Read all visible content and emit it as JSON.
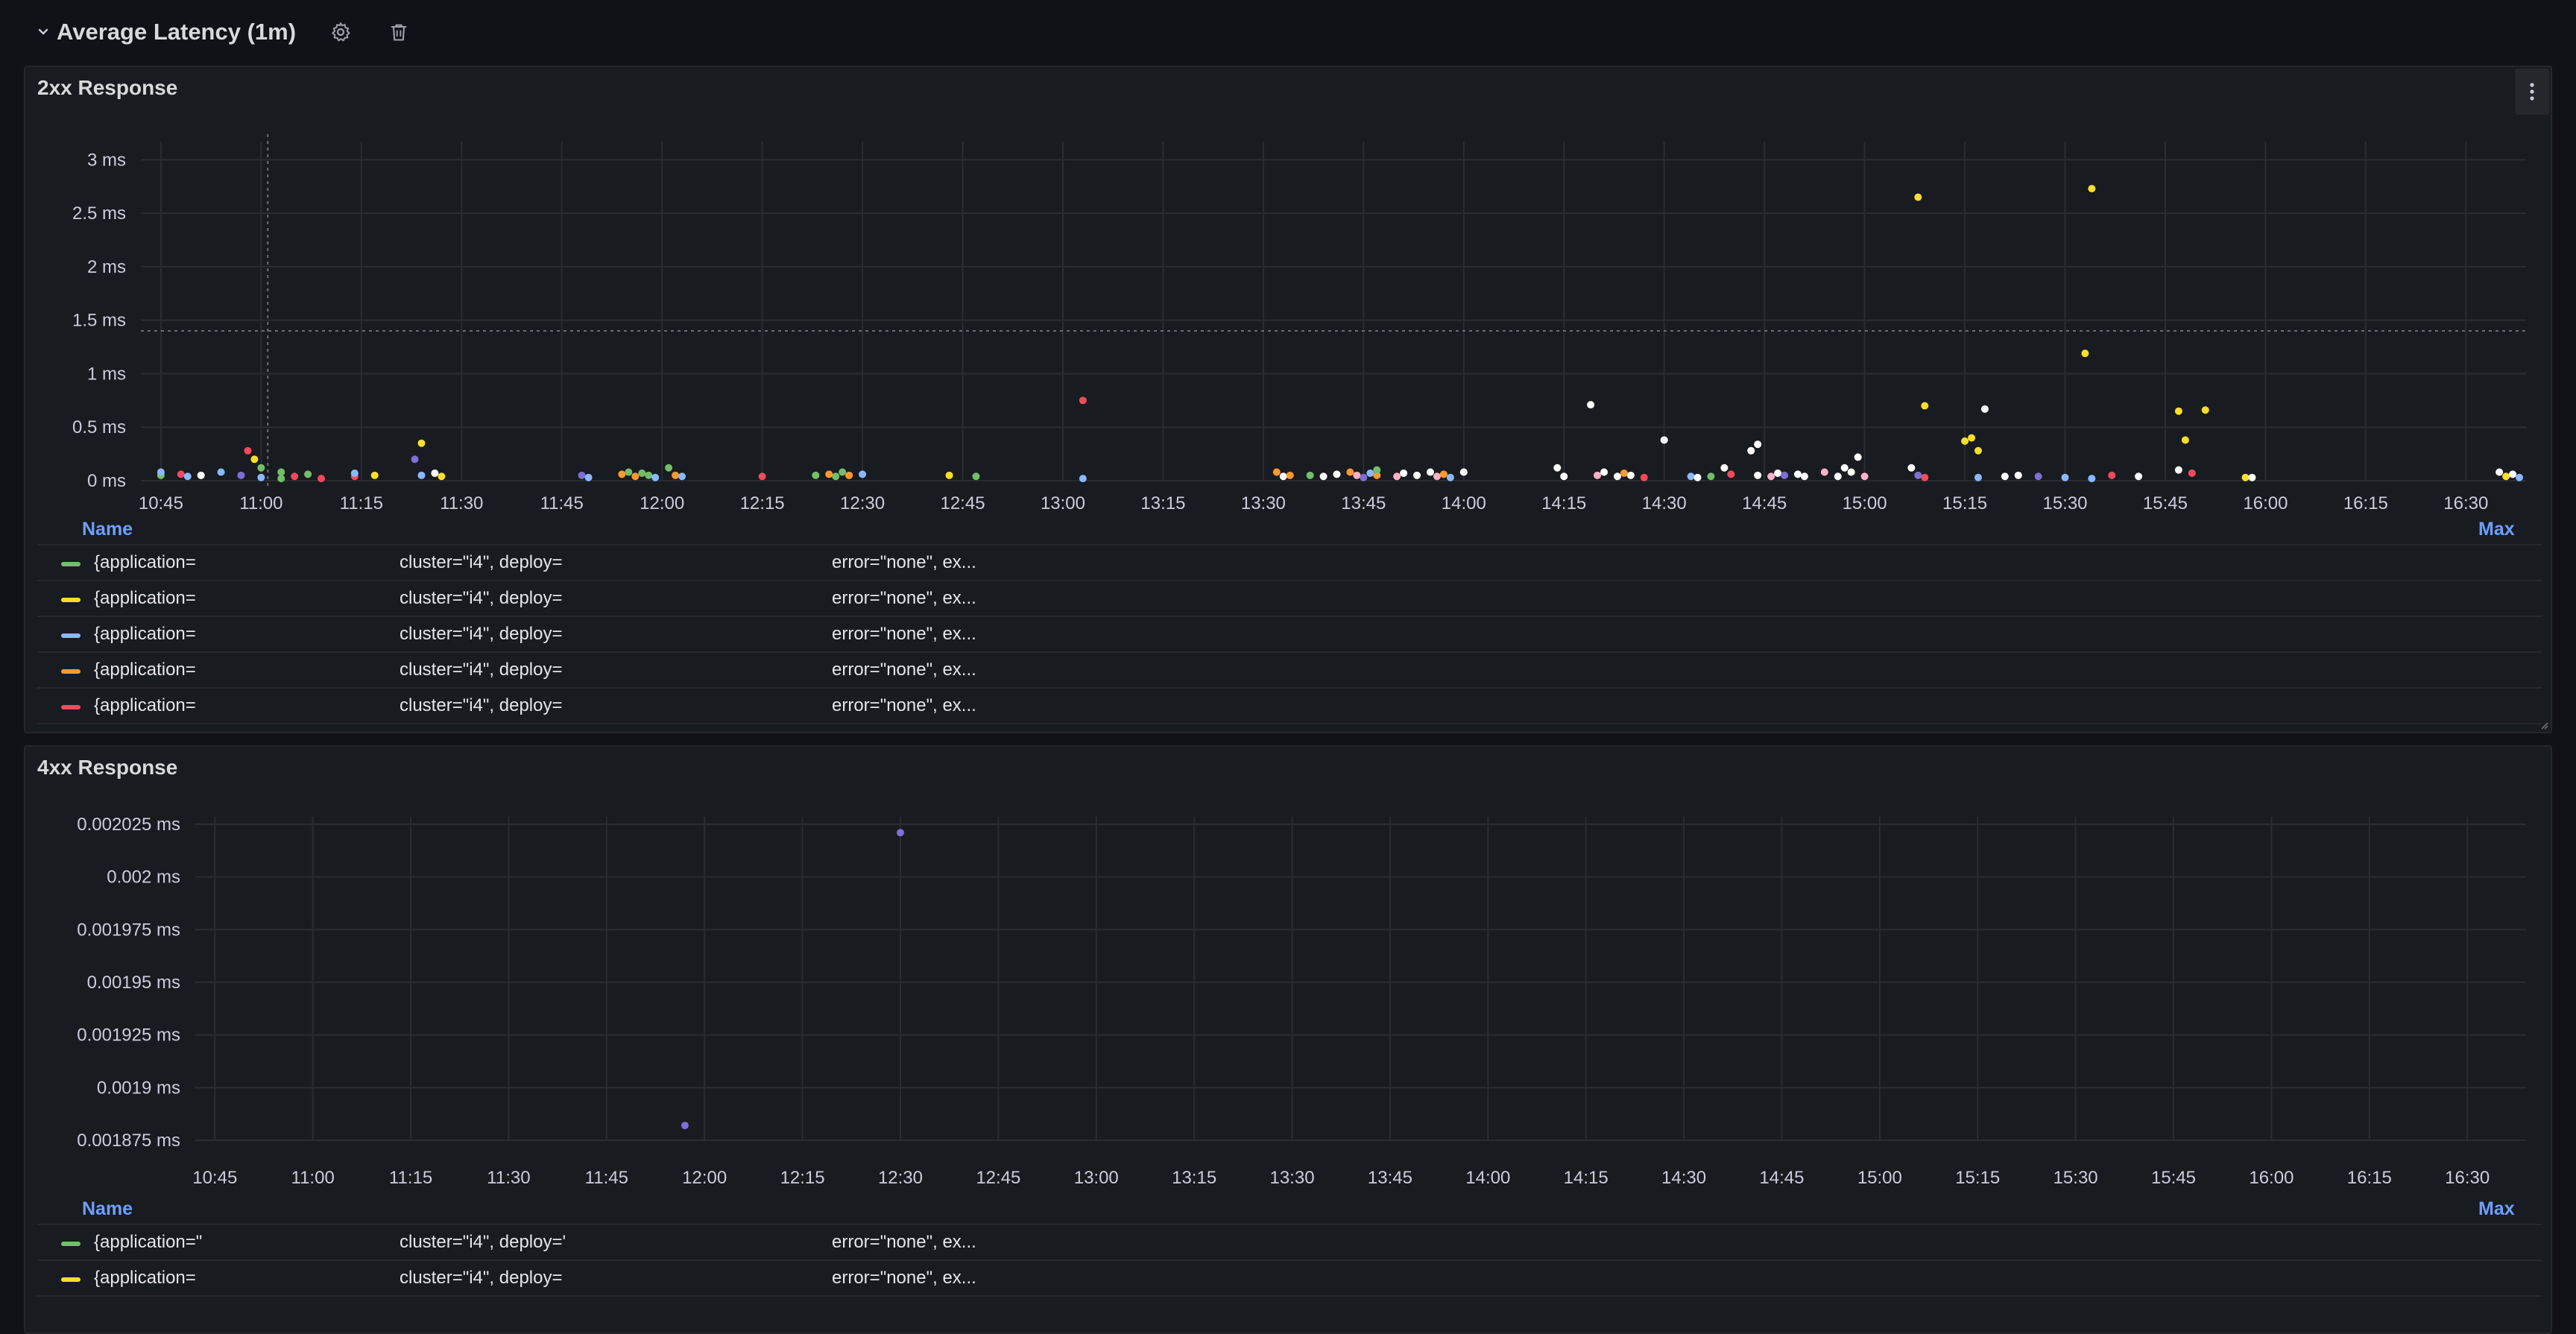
{
  "row": {
    "title": "Average Latency (1m)"
  },
  "icons": {
    "collapse": "chevron-down-icon",
    "settings": "gear-icon",
    "delete": "trash-icon",
    "menu": "kebab-menu-icon"
  },
  "colors": {
    "green": "#73bf69",
    "yellow": "#fade2a",
    "blue": "#8ab8ff",
    "orange": "#ff9830",
    "red": "#f2495c",
    "purple": "#7c6fd6",
    "pink": "#ffb0c8",
    "white": "#ffffff",
    "link": "#6e9fff"
  },
  "panels": [
    {
      "title": "2xx Response",
      "legend": {
        "name_header": "Name",
        "max_header": "Max",
        "rows": [
          {
            "color": "#73bf69",
            "col1": "{application=",
            "col2": "cluster=\"i4\", deploy=",
            "col3": "error=\"none\", ex..."
          },
          {
            "color": "#fade2a",
            "col1": "{application=",
            "col2": "cluster=\"i4\", deploy=",
            "col3": "error=\"none\", ex..."
          },
          {
            "color": "#8ab8ff",
            "col1": "{application=",
            "col2": "cluster=\"i4\", deploy=",
            "col3": "error=\"none\", ex..."
          },
          {
            "color": "#ff9830",
            "col1": "{application=",
            "col2": "cluster=\"i4\", deploy=",
            "col3": "error=\"none\", ex..."
          },
          {
            "color": "#f2495c",
            "col1": "{application=",
            "col2": "cluster=\"i4\", deploy=",
            "col3": "error=\"none\", ex..."
          }
        ]
      }
    },
    {
      "title": "4xx Response",
      "legend": {
        "name_header": "Name",
        "max_header": "Max",
        "rows": [
          {
            "color": "#73bf69",
            "col1": "{application=\"",
            "col2": "cluster=\"i4\", deploy='",
            "col3": "error=\"none\", ex..."
          },
          {
            "color": "#fade2a",
            "col1": "{application=",
            "col2": "cluster=\"i4\", deploy=",
            "col3": "error=\"none\", ex..."
          }
        ]
      }
    }
  ],
  "chart_data": [
    {
      "type": "scatter",
      "title": "2xx Response",
      "ylabel": "",
      "xlabel": "",
      "x_ticks": [
        "10:45",
        "11:00",
        "11:15",
        "11:30",
        "11:45",
        "12:00",
        "12:15",
        "12:30",
        "12:45",
        "13:00",
        "13:15",
        "13:30",
        "13:45",
        "14:00",
        "14:15",
        "14:30",
        "14:45",
        "15:00",
        "15:15",
        "15:30",
        "15:45",
        "16:00",
        "16:15",
        "16:30"
      ],
      "y_ticks": [
        "0 ms",
        "0.5 ms",
        "1 ms",
        "1.5 ms",
        "2 ms",
        "2.5 ms",
        "3 ms"
      ],
      "y_values": [
        0,
        0.5,
        1,
        1.5,
        2,
        2.5,
        3
      ],
      "xlim": [
        "10:42",
        "16:39"
      ],
      "ylim": [
        0,
        3.1
      ],
      "grid": true,
      "legend_position": "bottom",
      "threshold_ms": 1.4,
      "points": [
        {
          "x": "10:45",
          "y": 0.05,
          "c": "green"
        },
        {
          "x": "10:45",
          "y": 0.08,
          "c": "blue"
        },
        {
          "x": "10:48",
          "y": 0.06,
          "c": "red"
        },
        {
          "x": "10:49",
          "y": 0.04,
          "c": "blue"
        },
        {
          "x": "10:51",
          "y": 0.05,
          "c": "white"
        },
        {
          "x": "10:54",
          "y": 0.08,
          "c": "blue"
        },
        {
          "x": "10:57",
          "y": 0.05,
          "c": "purple"
        },
        {
          "x": "10:58",
          "y": 0.28,
          "c": "red"
        },
        {
          "x": "10:59",
          "y": 0.2,
          "c": "yellow"
        },
        {
          "x": "11:00",
          "y": 0.12,
          "c": "green"
        },
        {
          "x": "11:00",
          "y": 0.03,
          "c": "blue"
        },
        {
          "x": "11:03",
          "y": 0.08,
          "c": "green"
        },
        {
          "x": "11:03",
          "y": 0.02,
          "c": "green"
        },
        {
          "x": "11:05",
          "y": 0.04,
          "c": "red"
        },
        {
          "x": "11:07",
          "y": 0.06,
          "c": "green"
        },
        {
          "x": "11:09",
          "y": 0.02,
          "c": "red"
        },
        {
          "x": "11:14",
          "y": 0.04,
          "c": "red"
        },
        {
          "x": "11:14",
          "y": 0.07,
          "c": "blue"
        },
        {
          "x": "11:17",
          "y": 0.05,
          "c": "yellow"
        },
        {
          "x": "11:23",
          "y": 0.2,
          "c": "purple"
        },
        {
          "x": "11:24",
          "y": 0.35,
          "c": "yellow"
        },
        {
          "x": "11:24",
          "y": 0.05,
          "c": "blue"
        },
        {
          "x": "11:26",
          "y": 0.07,
          "c": "white"
        },
        {
          "x": "11:27",
          "y": 0.04,
          "c": "yellow"
        },
        {
          "x": "11:48",
          "y": 0.05,
          "c": "purple"
        },
        {
          "x": "11:49",
          "y": 0.03,
          "c": "blue"
        },
        {
          "x": "11:54",
          "y": 0.06,
          "c": "orange"
        },
        {
          "x": "11:55",
          "y": 0.08,
          "c": "green"
        },
        {
          "x": "11:56",
          "y": 0.04,
          "c": "orange"
        },
        {
          "x": "11:57",
          "y": 0.07,
          "c": "green"
        },
        {
          "x": "11:58",
          "y": 0.05,
          "c": "green"
        },
        {
          "x": "11:59",
          "y": 0.03,
          "c": "blue"
        },
        {
          "x": "12:01",
          "y": 0.12,
          "c": "green"
        },
        {
          "x": "12:02",
          "y": 0.05,
          "c": "orange"
        },
        {
          "x": "12:03",
          "y": 0.04,
          "c": "blue"
        },
        {
          "x": "12:15",
          "y": 0.04,
          "c": "red"
        },
        {
          "x": "12:23",
          "y": 0.05,
          "c": "green"
        },
        {
          "x": "12:25",
          "y": 0.06,
          "c": "orange"
        },
        {
          "x": "12:26",
          "y": 0.04,
          "c": "green"
        },
        {
          "x": "12:27",
          "y": 0.08,
          "c": "green"
        },
        {
          "x": "12:28",
          "y": 0.05,
          "c": "orange"
        },
        {
          "x": "12:30",
          "y": 0.06,
          "c": "blue"
        },
        {
          "x": "12:43",
          "y": 0.05,
          "c": "yellow"
        },
        {
          "x": "12:47",
          "y": 0.04,
          "c": "green"
        },
        {
          "x": "13:03",
          "y": 0.75,
          "c": "red"
        },
        {
          "x": "13:03",
          "y": 0.02,
          "c": "blue"
        },
        {
          "x": "13:32",
          "y": 0.08,
          "c": "orange"
        },
        {
          "x": "13:33",
          "y": 0.04,
          "c": "white"
        },
        {
          "x": "13:34",
          "y": 0.05,
          "c": "orange"
        },
        {
          "x": "13:37",
          "y": 0.05,
          "c": "green"
        },
        {
          "x": "13:39",
          "y": 0.04,
          "c": "white"
        },
        {
          "x": "13:41",
          "y": 0.06,
          "c": "white"
        },
        {
          "x": "13:43",
          "y": 0.08,
          "c": "orange"
        },
        {
          "x": "13:44",
          "y": 0.05,
          "c": "pink"
        },
        {
          "x": "13:45",
          "y": 0.03,
          "c": "purple"
        },
        {
          "x": "13:46",
          "y": 0.07,
          "c": "blue"
        },
        {
          "x": "13:47",
          "y": 0.05,
          "c": "orange"
        },
        {
          "x": "13:47",
          "y": 0.1,
          "c": "green"
        },
        {
          "x": "13:50",
          "y": 0.04,
          "c": "pink"
        },
        {
          "x": "13:51",
          "y": 0.07,
          "c": "white"
        },
        {
          "x": "13:53",
          "y": 0.05,
          "c": "white"
        },
        {
          "x": "13:55",
          "y": 0.08,
          "c": "white"
        },
        {
          "x": "13:56",
          "y": 0.04,
          "c": "pink"
        },
        {
          "x": "13:57",
          "y": 0.06,
          "c": "orange"
        },
        {
          "x": "13:58",
          "y": 0.03,
          "c": "blue"
        },
        {
          "x": "14:00",
          "y": 0.08,
          "c": "white"
        },
        {
          "x": "14:14",
          "y": 0.12,
          "c": "white"
        },
        {
          "x": "14:15",
          "y": 0.04,
          "c": "white"
        },
        {
          "x": "14:19",
          "y": 0.71,
          "c": "white"
        },
        {
          "x": "14:20",
          "y": 0.05,
          "c": "pink"
        },
        {
          "x": "14:21",
          "y": 0.08,
          "c": "white"
        },
        {
          "x": "14:23",
          "y": 0.04,
          "c": "white"
        },
        {
          "x": "14:24",
          "y": 0.07,
          "c": "orange"
        },
        {
          "x": "14:25",
          "y": 0.05,
          "c": "white"
        },
        {
          "x": "14:27",
          "y": 0.03,
          "c": "red"
        },
        {
          "x": "14:30",
          "y": 0.38,
          "c": "white"
        },
        {
          "x": "14:34",
          "y": 0.04,
          "c": "blue"
        },
        {
          "x": "14:35",
          "y": 0.03,
          "c": "white"
        },
        {
          "x": "14:37",
          "y": 0.04,
          "c": "green"
        },
        {
          "x": "14:39",
          "y": 0.12,
          "c": "white"
        },
        {
          "x": "14:40",
          "y": 0.06,
          "c": "red"
        },
        {
          "x": "14:43",
          "y": 0.28,
          "c": "white"
        },
        {
          "x": "14:44",
          "y": 0.34,
          "c": "white"
        },
        {
          "x": "14:44",
          "y": 0.05,
          "c": "white"
        },
        {
          "x": "14:46",
          "y": 0.04,
          "c": "pink"
        },
        {
          "x": "14:47",
          "y": 0.07,
          "c": "white"
        },
        {
          "x": "14:48",
          "y": 0.05,
          "c": "purple"
        },
        {
          "x": "14:50",
          "y": 0.06,
          "c": "white"
        },
        {
          "x": "14:51",
          "y": 0.04,
          "c": "white"
        },
        {
          "x": "14:54",
          "y": 0.08,
          "c": "pink"
        },
        {
          "x": "14:56",
          "y": 0.04,
          "c": "white"
        },
        {
          "x": "14:57",
          "y": 0.12,
          "c": "white"
        },
        {
          "x": "14:58",
          "y": 0.08,
          "c": "white"
        },
        {
          "x": "14:59",
          "y": 0.22,
          "c": "white"
        },
        {
          "x": "15:00",
          "y": 0.04,
          "c": "pink"
        },
        {
          "x": "15:07",
          "y": 0.12,
          "c": "white"
        },
        {
          "x": "15:08",
          "y": 0.05,
          "c": "purple"
        },
        {
          "x": "15:08",
          "y": 2.65,
          "c": "yellow"
        },
        {
          "x": "15:09",
          "y": 0.7,
          "c": "yellow"
        },
        {
          "x": "15:09",
          "y": 0.03,
          "c": "red"
        },
        {
          "x": "15:15",
          "y": 0.37,
          "c": "yellow"
        },
        {
          "x": "15:16",
          "y": 0.4,
          "c": "yellow"
        },
        {
          "x": "15:17",
          "y": 0.28,
          "c": "yellow"
        },
        {
          "x": "15:17",
          "y": 0.03,
          "c": "blue"
        },
        {
          "x": "15:18",
          "y": 0.67,
          "c": "white"
        },
        {
          "x": "15:21",
          "y": 0.04,
          "c": "white"
        },
        {
          "x": "15:23",
          "y": 0.05,
          "c": "white"
        },
        {
          "x": "15:26",
          "y": 0.04,
          "c": "purple"
        },
        {
          "x": "15:30",
          "y": 0.03,
          "c": "blue"
        },
        {
          "x": "15:33",
          "y": 1.19,
          "c": "yellow"
        },
        {
          "x": "15:34",
          "y": 2.73,
          "c": "yellow"
        },
        {
          "x": "15:34",
          "y": 0.02,
          "c": "blue"
        },
        {
          "x": "15:37",
          "y": 0.05,
          "c": "red"
        },
        {
          "x": "15:41",
          "y": 0.04,
          "c": "white"
        },
        {
          "x": "15:47",
          "y": 0.65,
          "c": "yellow"
        },
        {
          "x": "15:47",
          "y": 0.1,
          "c": "white"
        },
        {
          "x": "15:48",
          "y": 0.38,
          "c": "yellow"
        },
        {
          "x": "15:49",
          "y": 0.07,
          "c": "red"
        },
        {
          "x": "15:51",
          "y": 0.66,
          "c": "yellow"
        },
        {
          "x": "15:57",
          "y": 0.03,
          "c": "yellow"
        },
        {
          "x": "15:58",
          "y": 0.03,
          "c": "white"
        },
        {
          "x": "16:35",
          "y": 0.08,
          "c": "white"
        },
        {
          "x": "16:36",
          "y": 0.04,
          "c": "yellow"
        },
        {
          "x": "16:37",
          "y": 0.06,
          "c": "white"
        },
        {
          "x": "16:38",
          "y": 0.03,
          "c": "blue"
        }
      ]
    },
    {
      "type": "scatter",
      "title": "4xx Response",
      "ylabel": "",
      "xlabel": "",
      "x_ticks": [
        "10:45",
        "11:00",
        "11:15",
        "11:30",
        "11:45",
        "12:00",
        "12:15",
        "12:30",
        "12:45",
        "13:00",
        "13:15",
        "13:30",
        "13:45",
        "14:00",
        "14:15",
        "14:30",
        "14:45",
        "15:00",
        "15:15",
        "15:30",
        "15:45",
        "16:00",
        "16:15",
        "16:30"
      ],
      "y_ticks": [
        "0.001875 ms",
        "0.0019 ms",
        "0.001925 ms",
        "0.00195 ms",
        "0.001975 ms",
        "0.002 ms",
        "0.002025 ms"
      ],
      "y_values": [
        0.001875,
        0.0019,
        0.001925,
        0.00195,
        0.001975,
        0.002,
        0.002025
      ],
      "xlim": [
        "10:42",
        "16:39"
      ],
      "ylim": [
        0.001875,
        0.002025
      ],
      "grid": true,
      "legend_position": "bottom",
      "points": [
        {
          "x": "11:57",
          "y": 0.001882,
          "c": "purple"
        },
        {
          "x": "12:30",
          "y": 0.002021,
          "c": "purple"
        }
      ]
    }
  ]
}
